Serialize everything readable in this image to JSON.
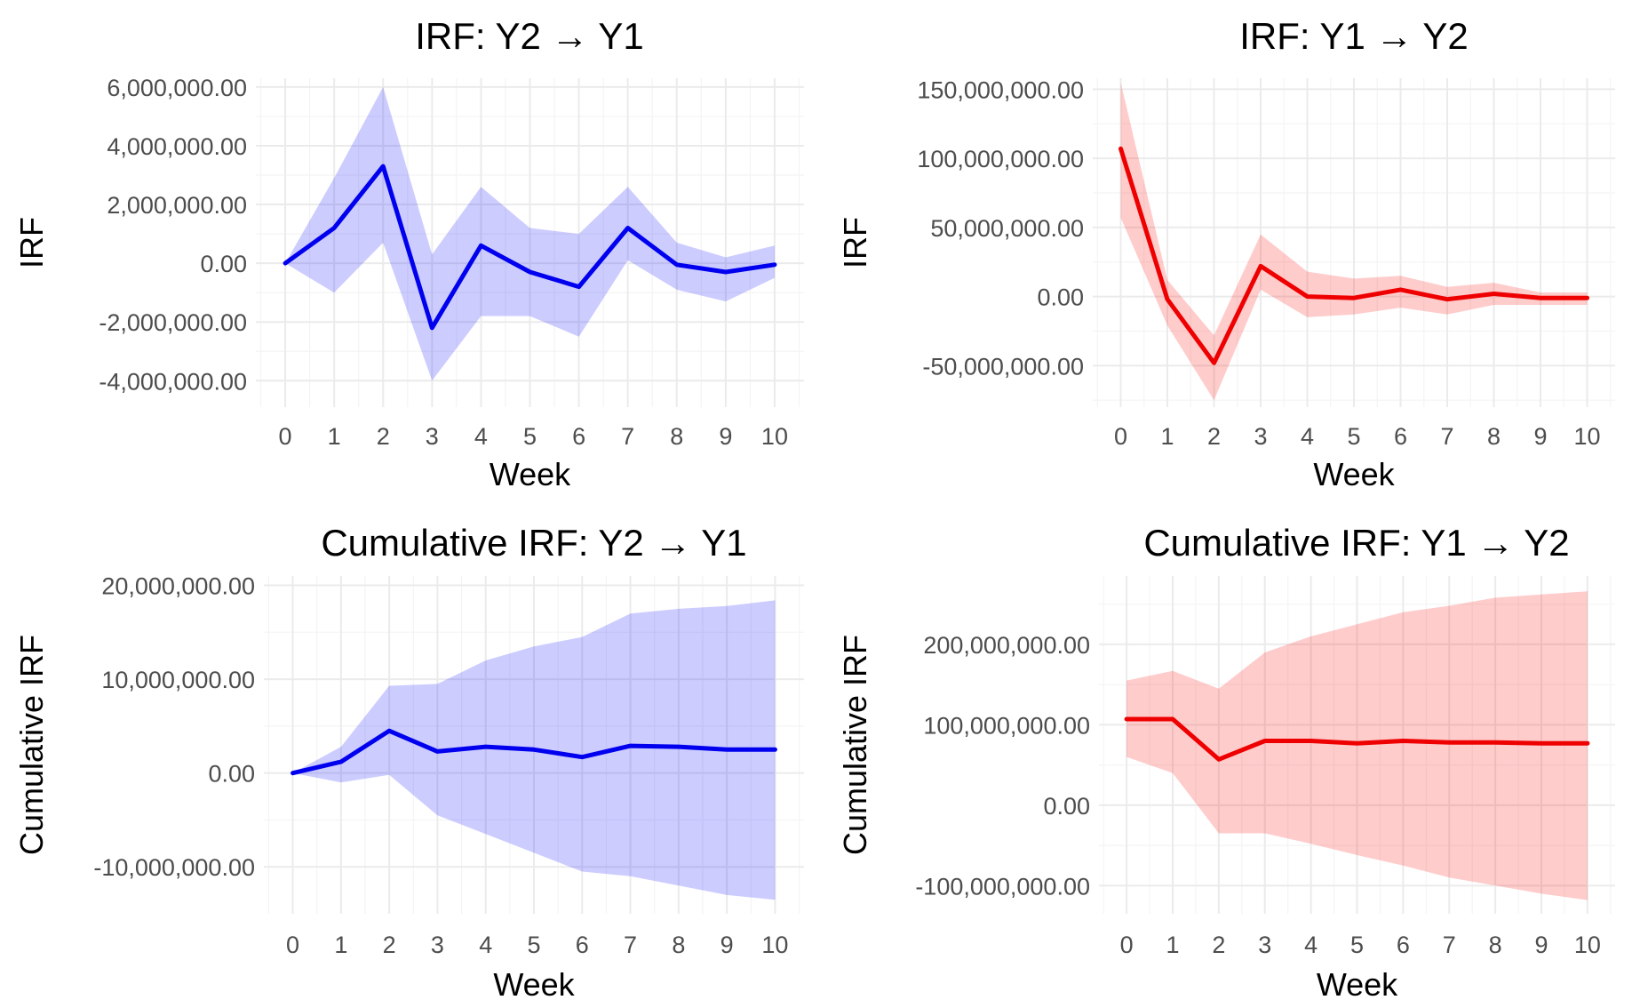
{
  "chart_data": [
    {
      "type": "line",
      "title": "IRF: Y2 → Y1",
      "xlabel": "Week",
      "ylabel": "IRF",
      "color": "#0000ee",
      "band_color": "#0000ff",
      "x": [
        0,
        1,
        2,
        3,
        4,
        5,
        6,
        7,
        8,
        9,
        10
      ],
      "xticks": [
        "0",
        "1",
        "2",
        "3",
        "4",
        "5",
        "6",
        "7",
        "8",
        "9",
        "10"
      ],
      "ylim": [
        -4900000,
        6300000
      ],
      "yticks": [
        -4000000,
        -2000000,
        0,
        2000000,
        4000000,
        6000000
      ],
      "ytick_labels": [
        "-4,000,000.00",
        "-2,000,000.00",
        "0.00",
        "2,000,000.00",
        "4,000,000.00",
        "6,000,000.00"
      ],
      "grid": true,
      "series": [
        {
          "name": "IRF",
          "values": [
            0,
            1200000,
            3300000,
            -2200000,
            600000,
            -300000,
            -800000,
            1200000,
            -50000,
            -300000,
            -50000
          ],
          "lower": [
            0,
            -1000000,
            700000,
            -4000000,
            -1800000,
            -1800000,
            -2500000,
            100000,
            -900000,
            -1300000,
            -500000
          ],
          "upper": [
            0,
            2900000,
            6000000,
            300000,
            2600000,
            1200000,
            1000000,
            2600000,
            700000,
            200000,
            600000
          ]
        }
      ]
    },
    {
      "type": "line",
      "title": "IRF: Y1 → Y2",
      "xlabel": "Week",
      "ylabel": "IRF",
      "color": "#ee0000",
      "band_color": "#ff0000",
      "x": [
        0,
        1,
        2,
        3,
        4,
        5,
        6,
        7,
        8,
        9,
        10
      ],
      "xticks": [
        "0",
        "1",
        "2",
        "3",
        "4",
        "5",
        "6",
        "7",
        "8",
        "9",
        "10"
      ],
      "ylim": [
        -80000000,
        158000000
      ],
      "yticks": [
        -50000000,
        0,
        50000000,
        100000000,
        150000000
      ],
      "ytick_labels": [
        "-50,000,000.00",
        "0.00",
        "50,000,000.00",
        "100,000,000.00",
        "150,000,000.00"
      ],
      "grid": true,
      "series": [
        {
          "name": "IRF",
          "values": [
            107000000,
            -2000000,
            -48000000,
            22000000,
            0,
            -1000000,
            5000000,
            -2000000,
            2000000,
            -1000000,
            -1000000
          ],
          "lower": [
            57000000,
            -21000000,
            -75000000,
            5000000,
            -15000000,
            -13000000,
            -8000000,
            -13000000,
            -6000000,
            -6000000,
            -6000000
          ],
          "upper": [
            155000000,
            12000000,
            -28000000,
            45000000,
            18000000,
            13000000,
            15000000,
            7000000,
            10000000,
            3000000,
            3000000
          ]
        }
      ]
    },
    {
      "type": "line",
      "title": "Cumulative IRF: Y2 → Y1",
      "xlabel": "Week",
      "ylabel": "Cumulative IRF",
      "color": "#0000ee",
      "band_color": "#0000ff",
      "x": [
        0,
        1,
        2,
        3,
        4,
        5,
        6,
        7,
        8,
        9,
        10
      ],
      "xticks": [
        "0",
        "1",
        "2",
        "3",
        "4",
        "5",
        "6",
        "7",
        "8",
        "9",
        "10"
      ],
      "ylim": [
        -15000000,
        21000000
      ],
      "yticks": [
        -10000000,
        0,
        10000000,
        20000000
      ],
      "ytick_labels": [
        "-10,000,000.00",
        "0.00",
        "10,000,000.00",
        "20,000,000.00"
      ],
      "grid": true,
      "series": [
        {
          "name": "Cumulative IRF",
          "values": [
            0,
            1200000,
            4500000,
            2300000,
            2800000,
            2500000,
            1700000,
            2900000,
            2800000,
            2500000,
            2500000
          ],
          "lower": [
            0,
            -1000000,
            -200000,
            -4500000,
            -6500000,
            -8500000,
            -10500000,
            -11000000,
            -12000000,
            -13000000,
            -13500000
          ],
          "upper": [
            0,
            2800000,
            9300000,
            9500000,
            12000000,
            13500000,
            14500000,
            17000000,
            17500000,
            17800000,
            18400000
          ]
        }
      ]
    },
    {
      "type": "line",
      "title": "Cumulative IRF: Y1 → Y2",
      "xlabel": "Week",
      "ylabel": "Cumulative IRF",
      "color": "#ee0000",
      "band_color": "#ff0000",
      "x": [
        0,
        1,
        2,
        3,
        4,
        5,
        6,
        7,
        8,
        9,
        10
      ],
      "xticks": [
        "0",
        "1",
        "2",
        "3",
        "4",
        "5",
        "6",
        "7",
        "8",
        "9",
        "10"
      ],
      "ylim": [
        -135000000,
        285000000
      ],
      "yticks": [
        -100000000,
        0,
        100000000,
        200000000
      ],
      "ytick_labels": [
        "-100,000,000.00",
        "0.00",
        "100,000,000.00",
        "200,000,000.00"
      ],
      "grid": true,
      "series": [
        {
          "name": "Cumulative IRF",
          "values": [
            107000000,
            107000000,
            57000000,
            80000000,
            80000000,
            77000000,
            80000000,
            78000000,
            78000000,
            77000000,
            77000000
          ],
          "lower": [
            60000000,
            40000000,
            -35000000,
            -35000000,
            -48000000,
            -62000000,
            -75000000,
            -90000000,
            -100000000,
            -110000000,
            -118000000
          ],
          "upper": [
            155000000,
            167000000,
            145000000,
            190000000,
            210000000,
            225000000,
            240000000,
            248000000,
            258000000,
            262000000,
            266000000
          ]
        }
      ]
    }
  ]
}
